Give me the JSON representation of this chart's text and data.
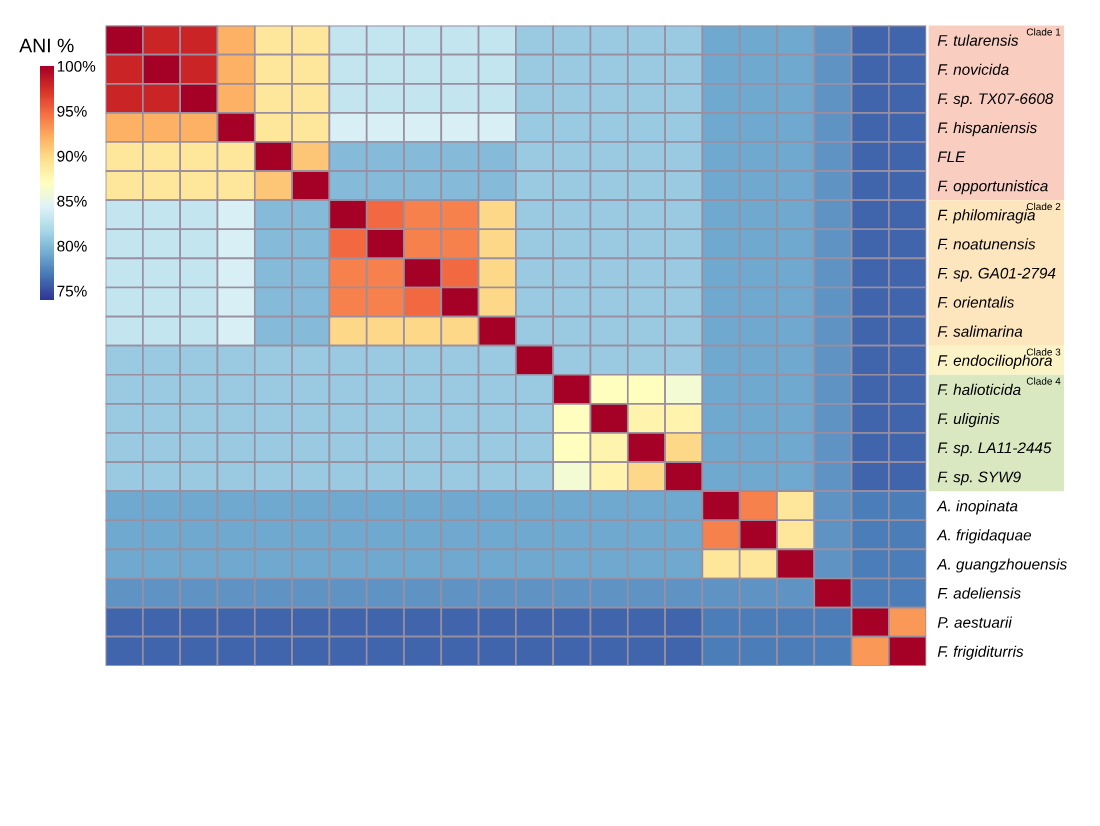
{
  "chart_data": {
    "type": "heatmap",
    "clabel": "ANI %",
    "categories": [
      null,
      null,
      null,
      null,
      null,
      null,
      null,
      null,
      null,
      null,
      null,
      null,
      null,
      null,
      null,
      null,
      null,
      null,
      null,
      null,
      null,
      null
    ],
    "y_categories": [
      "F. tularensis",
      "F. novicida",
      "F. sp. TX07-6608",
      "F. hispaniensis",
      "FLE",
      "F. opportunistica",
      "F. philomiragia",
      "F. noatunensis",
      "F. sp. GA01-2794",
      "F. orientalis",
      "F. salimarina",
      "F. endociliophora",
      "F. halioticida",
      "F. uliginis",
      "F. sp. LA11-2445",
      "F. sp. SYW9",
      "A. inopinata",
      "A. frigidaquae",
      "A. guangzhouensis",
      "F. adeliensis",
      "P. aestuarii",
      "F. frigiditurris"
    ],
    "cells": [
      [
        100,
        98,
        98,
        92,
        89,
        89,
        83,
        83,
        83,
        83,
        83,
        81,
        81,
        81,
        81,
        81,
        79,
        79,
        79,
        78,
        76,
        76
      ],
      [
        98,
        100,
        98,
        92,
        89,
        89,
        83,
        83,
        83,
        83,
        83,
        81,
        81,
        81,
        81,
        81,
        79,
        79,
        79,
        78,
        76,
        76
      ],
      [
        98,
        98,
        100,
        92,
        89,
        89,
        83,
        83,
        83,
        83,
        83,
        81,
        81,
        81,
        81,
        81,
        79,
        79,
        79,
        78,
        76,
        76
      ],
      [
        92,
        92,
        92,
        100,
        89,
        89,
        84,
        84,
        84,
        84,
        84,
        81,
        81,
        81,
        81,
        81,
        79,
        79,
        79,
        78,
        76,
        76
      ],
      [
        89,
        89,
        89,
        89,
        100,
        91,
        80,
        80,
        80,
        80,
        80,
        81,
        81,
        81,
        81,
        81,
        79,
        79,
        79,
        78,
        76,
        76
      ],
      [
        89,
        89,
        89,
        89,
        91,
        100,
        80,
        80,
        80,
        80,
        80,
        81,
        81,
        81,
        81,
        81,
        79,
        79,
        79,
        78,
        76,
        76
      ],
      [
        83,
        83,
        83,
        84,
        80,
        80,
        100,
        95,
        94,
        94,
        90,
        81,
        81,
        81,
        81,
        81,
        79,
        79,
        79,
        78,
        76,
        76
      ],
      [
        83,
        83,
        83,
        84,
        80,
        80,
        95,
        100,
        94,
        94,
        90,
        81,
        81,
        81,
        81,
        81,
        79,
        79,
        79,
        78,
        76,
        76
      ],
      [
        83,
        83,
        83,
        84,
        80,
        80,
        94,
        94,
        100,
        95,
        90,
        81,
        81,
        81,
        81,
        81,
        79,
        79,
        79,
        78,
        76,
        76
      ],
      [
        83,
        83,
        83,
        84,
        80,
        80,
        94,
        94,
        95,
        100,
        90,
        81,
        81,
        81,
        81,
        81,
        79,
        79,
        79,
        78,
        76,
        76
      ],
      [
        83,
        83,
        83,
        84,
        80,
        80,
        90,
        90,
        90,
        90,
        100,
        81,
        81,
        81,
        81,
        81,
        79,
        79,
        79,
        78,
        76,
        76
      ],
      [
        81,
        81,
        81,
        81,
        81,
        81,
        81,
        81,
        81,
        81,
        81,
        100,
        81,
        81,
        81,
        81,
        79,
        79,
        79,
        78,
        76,
        76
      ],
      [
        81,
        81,
        81,
        81,
        81,
        81,
        81,
        81,
        81,
        81,
        81,
        81,
        100,
        87,
        87,
        86,
        79,
        79,
        79,
        78,
        76,
        76
      ],
      [
        81,
        81,
        81,
        81,
        81,
        81,
        81,
        81,
        81,
        81,
        81,
        81,
        87,
        100,
        88,
        88,
        79,
        79,
        79,
        78,
        76,
        76
      ],
      [
        81,
        81,
        81,
        81,
        81,
        81,
        81,
        81,
        81,
        81,
        81,
        81,
        87,
        88,
        100,
        90,
        79,
        79,
        79,
        78,
        76,
        76
      ],
      [
        81,
        81,
        81,
        81,
        81,
        81,
        81,
        81,
        81,
        81,
        81,
        81,
        86,
        88,
        90,
        100,
        79,
        79,
        79,
        78,
        76,
        76
      ],
      [
        79,
        79,
        79,
        79,
        79,
        79,
        79,
        79,
        79,
        79,
        79,
        79,
        79,
        79,
        79,
        79,
        100,
        94,
        89,
        78,
        77,
        77
      ],
      [
        79,
        79,
        79,
        79,
        79,
        79,
        79,
        79,
        79,
        79,
        79,
        79,
        79,
        79,
        79,
        79,
        94,
        100,
        89,
        78,
        77,
        77
      ],
      [
        79,
        79,
        79,
        79,
        79,
        79,
        79,
        79,
        79,
        79,
        79,
        79,
        79,
        79,
        79,
        79,
        89,
        89,
        100,
        78,
        77,
        77
      ],
      [
        78,
        78,
        78,
        78,
        78,
        78,
        78,
        78,
        78,
        78,
        78,
        78,
        78,
        78,
        78,
        78,
        78,
        78,
        78,
        100,
        77,
        77
      ],
      [
        76,
        76,
        76,
        76,
        76,
        76,
        76,
        76,
        76,
        76,
        76,
        76,
        76,
        76,
        76,
        76,
        77,
        77,
        77,
        77,
        100,
        93
      ],
      [
        76,
        76,
        76,
        76,
        76,
        76,
        76,
        76,
        76,
        76,
        76,
        76,
        76,
        76,
        76,
        76,
        77,
        77,
        77,
        77,
        93,
        100
      ]
    ],
    "clim": [
      74,
      100
    ],
    "cticks": [
      {
        "value": 75,
        "label": "75%"
      },
      {
        "value": 80,
        "label": "80%"
      },
      {
        "value": 85,
        "label": "85%"
      },
      {
        "value": 90,
        "label": "90%"
      },
      {
        "value": 95,
        "label": "95%"
      },
      {
        "value": 100,
        "label": "100%"
      }
    ],
    "annotations": [
      "Clade 1",
      "Clade 2",
      "Clade 3",
      "Clade 4"
    ]
  }
}
